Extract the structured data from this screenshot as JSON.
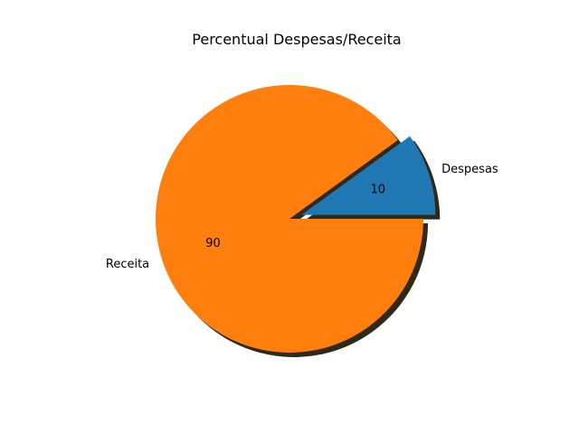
{
  "chart_data": {
    "type": "pie",
    "title": "Percentual Despesas/Receita",
    "slices": [
      {
        "label": "Despesas",
        "value": 10,
        "value_label": "10",
        "color": "#1f77b4",
        "exploded": true
      },
      {
        "label": "Receita",
        "value": 90,
        "value_label": "90",
        "color": "#ff7f0e",
        "exploded": false
      }
    ],
    "start_angle_deg": 0,
    "shadow": true,
    "shadow_color": "#2f2a18"
  }
}
